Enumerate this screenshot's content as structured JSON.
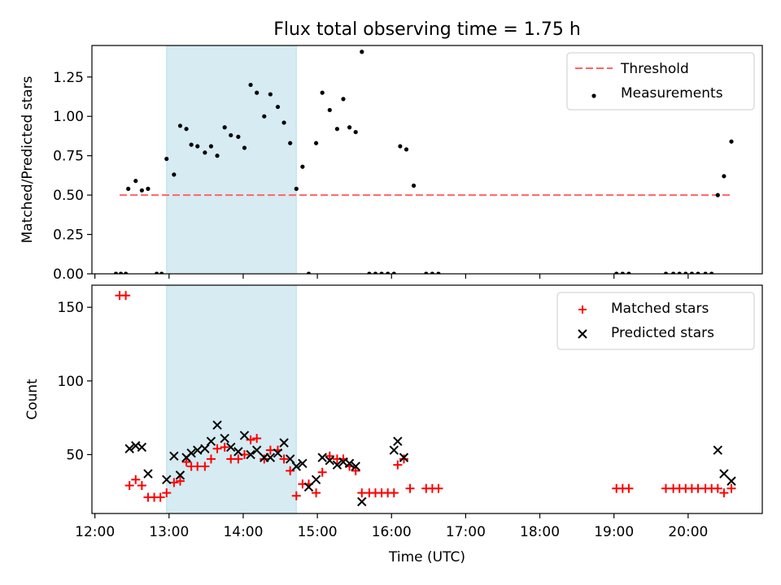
{
  "figure": {
    "title": "Flux total observing time = 1.75 h"
  },
  "chart_data": [
    {
      "type": "scatter",
      "ylabel": "Matched/Predicted stars",
      "ylim": [
        0,
        1.45
      ],
      "yticks": [
        0.0,
        0.25,
        0.5,
        0.75,
        1.0,
        1.25
      ],
      "ytick_labels": [
        "0.00",
        "0.25",
        "0.50",
        "0.75",
        "1.00",
        "1.25"
      ],
      "xlim_hours": [
        11.96,
        21.0
      ],
      "xticks_hours": [
        12,
        13,
        14,
        15,
        16,
        17,
        18,
        19,
        20
      ],
      "shaded_span": {
        "start": "12:58",
        "end": "14:43",
        "color": "#add8e6"
      },
      "threshold": {
        "name": "Threshold",
        "value": 0.5,
        "from": "12:20",
        "to": "20:35",
        "color": "#ff6464"
      },
      "legend": {
        "position": "top-right",
        "entries": [
          "Threshold",
          "Measurements"
        ]
      },
      "series": [
        {
          "name": "Measurements",
          "color": "#000000",
          "points": [
            [
              "12:17",
              0
            ],
            [
              "12:21",
              0
            ],
            [
              "12:25",
              0
            ],
            [
              "12:27",
              0.54
            ],
            [
              "12:33",
              0.59
            ],
            [
              "12:38",
              0.53
            ],
            [
              "12:43",
              0.54
            ],
            [
              "12:50",
              0
            ],
            [
              "12:54",
              0
            ],
            [
              "12:58",
              0.73
            ],
            [
              "13:04",
              0.63
            ],
            [
              "13:09",
              0.94
            ],
            [
              "13:14",
              0.92
            ],
            [
              "13:18",
              0.82
            ],
            [
              "13:23",
              0.81
            ],
            [
              "13:29",
              0.77
            ],
            [
              "13:34",
              0.81
            ],
            [
              "13:39",
              0.75
            ],
            [
              "13:45",
              0.93
            ],
            [
              "13:50",
              0.88
            ],
            [
              "13:56",
              0.87
            ],
            [
              "14:01",
              0.8
            ],
            [
              "14:06",
              1.2
            ],
            [
              "14:11",
              1.15
            ],
            [
              "14:17",
              1.0
            ],
            [
              "14:22",
              1.14
            ],
            [
              "14:28",
              1.06
            ],
            [
              "14:33",
              0.96
            ],
            [
              "14:38",
              0.83
            ],
            [
              "14:43",
              0.54
            ],
            [
              "14:48",
              0.68
            ],
            [
              "14:53",
              0
            ],
            [
              "14:59",
              0.83
            ],
            [
              "15:04",
              1.15
            ],
            [
              "15:10",
              1.04
            ],
            [
              "15:16",
              0.92
            ],
            [
              "15:21",
              1.11
            ],
            [
              "15:26",
              0.93
            ],
            [
              "15:31",
              0.9
            ],
            [
              "15:36",
              1.41
            ],
            [
              "15:42",
              0
            ],
            [
              "15:47",
              0
            ],
            [
              "15:52",
              0
            ],
            [
              "15:57",
              0
            ],
            [
              "16:02",
              0
            ],
            [
              "16:07",
              0.81
            ],
            [
              "16:12",
              0.79
            ],
            [
              "16:18",
              0.56
            ],
            [
              "16:28",
              0
            ],
            [
              "16:33",
              0
            ],
            [
              "16:38",
              0
            ],
            [
              "19:02",
              0
            ],
            [
              "19:07",
              0
            ],
            [
              "19:12",
              0
            ],
            [
              "19:42",
              0
            ],
            [
              "19:48",
              0
            ],
            [
              "19:53",
              0
            ],
            [
              "19:58",
              0
            ],
            [
              "20:03",
              0
            ],
            [
              "20:08",
              0
            ],
            [
              "20:14",
              0
            ],
            [
              "20:19",
              0
            ],
            [
              "20:24",
              0.5
            ],
            [
              "20:29",
              0.62
            ],
            [
              "20:35",
              0.84
            ]
          ]
        }
      ]
    },
    {
      "type": "scatter",
      "xlabel": "Time (UTC)",
      "ylabel": "Count",
      "ylim": [
        10,
        165
      ],
      "yticks": [
        50,
        100,
        150
      ],
      "ytick_labels": [
        "50",
        "100",
        "150"
      ],
      "xlim_hours": [
        11.96,
        21.0
      ],
      "xticks_hours": [
        12,
        13,
        14,
        15,
        16,
        17,
        18,
        19,
        20
      ],
      "xtick_labels": [
        "12:00",
        "13:00",
        "14:00",
        "15:00",
        "16:00",
        "17:00",
        "18:00",
        "19:00",
        "20:00"
      ],
      "shaded_span": {
        "start": "12:58",
        "end": "14:43",
        "color": "#add8e6"
      },
      "legend": {
        "position": "top-right",
        "entries": [
          "Matched stars",
          "Predicted stars"
        ]
      },
      "series": [
        {
          "name": "Matched stars",
          "marker": "plus",
          "color": "#ff0000",
          "points": [
            [
              "12:20",
              158
            ],
            [
              "12:25",
              158
            ],
            [
              "12:28",
              29
            ],
            [
              "12:33",
              33
            ],
            [
              "12:38",
              29
            ],
            [
              "12:43",
              21
            ],
            [
              "12:48",
              21
            ],
            [
              "12:53",
              21
            ],
            [
              "12:58",
              24
            ],
            [
              "13:04",
              31
            ],
            [
              "13:09",
              32
            ],
            [
              "13:14",
              45
            ],
            [
              "13:18",
              42
            ],
            [
              "13:23",
              42
            ],
            [
              "13:29",
              42
            ],
            [
              "13:34",
              47
            ],
            [
              "13:39",
              54
            ],
            [
              "13:45",
              55
            ],
            [
              "13:50",
              47
            ],
            [
              "13:56",
              47
            ],
            [
              "14:01",
              50
            ],
            [
              "14:06",
              60
            ],
            [
              "14:11",
              61
            ],
            [
              "14:17",
              47
            ],
            [
              "14:22",
              53
            ],
            [
              "14:28",
              53
            ],
            [
              "14:33",
              47
            ],
            [
              "14:38",
              39
            ],
            [
              "14:43",
              22
            ],
            [
              "14:48",
              30
            ],
            [
              "14:53",
              30
            ],
            [
              "14:59",
              24
            ],
            [
              "15:04",
              38
            ],
            [
              "15:10",
              49
            ],
            [
              "15:16",
              47
            ],
            [
              "15:21",
              47
            ],
            [
              "15:26",
              42
            ],
            [
              "15:31",
              39
            ],
            [
              "15:36",
              24
            ],
            [
              "15:42",
              24
            ],
            [
              "15:47",
              24
            ],
            [
              "15:52",
              24
            ],
            [
              "15:57",
              24
            ],
            [
              "16:02",
              24
            ],
            [
              "16:05",
              43
            ],
            [
              "16:10",
              47
            ],
            [
              "16:15",
              27
            ],
            [
              "16:28",
              27
            ],
            [
              "16:33",
              27
            ],
            [
              "16:38",
              27
            ],
            [
              "19:02",
              27
            ],
            [
              "19:07",
              27
            ],
            [
              "19:12",
              27
            ],
            [
              "19:42",
              27
            ],
            [
              "19:48",
              27
            ],
            [
              "19:53",
              27
            ],
            [
              "19:58",
              27
            ],
            [
              "20:03",
              27
            ],
            [
              "20:08",
              27
            ],
            [
              "20:14",
              27
            ],
            [
              "20:19",
              27
            ],
            [
              "20:24",
              27
            ],
            [
              "20:29",
              24
            ],
            [
              "20:35",
              27
            ]
          ]
        },
        {
          "name": "Predicted stars",
          "marker": "x",
          "color": "#000000",
          "points": [
            [
              "12:28",
              54
            ],
            [
              "12:33",
              56
            ],
            [
              "12:38",
              55
            ],
            [
              "12:43",
              37
            ],
            [
              "12:58",
              33
            ],
            [
              "13:04",
              49
            ],
            [
              "13:09",
              36
            ],
            [
              "13:14",
              48
            ],
            [
              "13:18",
              51
            ],
            [
              "13:23",
              53
            ],
            [
              "13:29",
              54
            ],
            [
              "13:34",
              59
            ],
            [
              "13:39",
              70
            ],
            [
              "13:45",
              61
            ],
            [
              "13:50",
              55
            ],
            [
              "13:56",
              52
            ],
            [
              "14:01",
              63
            ],
            [
              "14:06",
              50
            ],
            [
              "14:11",
              53
            ],
            [
              "14:17",
              48
            ],
            [
              "14:22",
              48
            ],
            [
              "14:28",
              51
            ],
            [
              "14:33",
              58
            ],
            [
              "14:38",
              47
            ],
            [
              "14:43",
              42
            ],
            [
              "14:48",
              44
            ],
            [
              "14:53",
              28
            ],
            [
              "14:59",
              33
            ],
            [
              "15:04",
              48
            ],
            [
              "15:10",
              46
            ],
            [
              "15:16",
              43
            ],
            [
              "15:21",
              45
            ],
            [
              "15:26",
              44
            ],
            [
              "15:31",
              42
            ],
            [
              "15:36",
              18
            ],
            [
              "16:02",
              53
            ],
            [
              "16:05",
              59
            ],
            [
              "16:10",
              48
            ],
            [
              "20:24",
              53
            ],
            [
              "20:29",
              37
            ],
            [
              "20:35",
              32
            ]
          ]
        }
      ]
    }
  ]
}
